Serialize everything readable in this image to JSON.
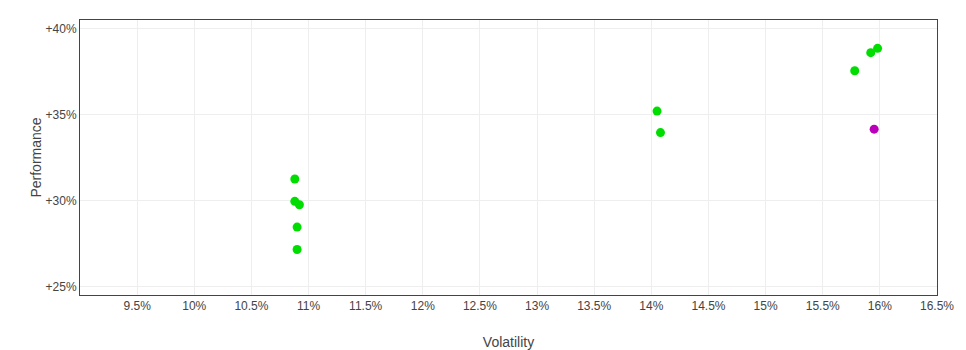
{
  "chart_data": {
    "type": "scatter",
    "xlabel": "Volatility",
    "ylabel": "Performance",
    "xlim": [
      0.09,
      0.165
    ],
    "ylim": [
      0.245,
      0.405
    ],
    "xticks": [
      {
        "value": 0.095,
        "label": "9.5%"
      },
      {
        "value": 0.1,
        "label": "10%"
      },
      {
        "value": 0.105,
        "label": "10.5%"
      },
      {
        "value": 0.11,
        "label": "11%"
      },
      {
        "value": 0.115,
        "label": "11.5%"
      },
      {
        "value": 0.12,
        "label": "12%"
      },
      {
        "value": 0.125,
        "label": "12.5%"
      },
      {
        "value": 0.13,
        "label": "13%"
      },
      {
        "value": 0.135,
        "label": "13.5%"
      },
      {
        "value": 0.14,
        "label": "14%"
      },
      {
        "value": 0.145,
        "label": "14.5%"
      },
      {
        "value": 0.15,
        "label": "15%"
      },
      {
        "value": 0.155,
        "label": "15.5%"
      },
      {
        "value": 0.16,
        "label": "16%"
      },
      {
        "value": 0.165,
        "label": "16.5%"
      }
    ],
    "yticks": [
      {
        "value": 0.25,
        "label": "+25%"
      },
      {
        "value": 0.3,
        "label": "+30%"
      },
      {
        "value": 0.35,
        "label": "+35%"
      },
      {
        "value": 0.4,
        "label": "+40%"
      }
    ],
    "grid": true,
    "series": [
      {
        "color": "#00dd00",
        "x": [
          0.1088,
          0.1088,
          0.1092,
          0.109,
          0.109,
          0.1405,
          0.1408,
          0.1578,
          0.1592,
          0.1598
        ],
        "values": [
          0.3125,
          0.2995,
          0.2975,
          0.2845,
          0.2715,
          0.352,
          0.3395,
          0.3755,
          0.386,
          0.3885
        ]
      },
      {
        "color": "#bb00bb",
        "x": [
          0.1595
        ],
        "values": [
          0.3415
        ]
      }
    ]
  }
}
